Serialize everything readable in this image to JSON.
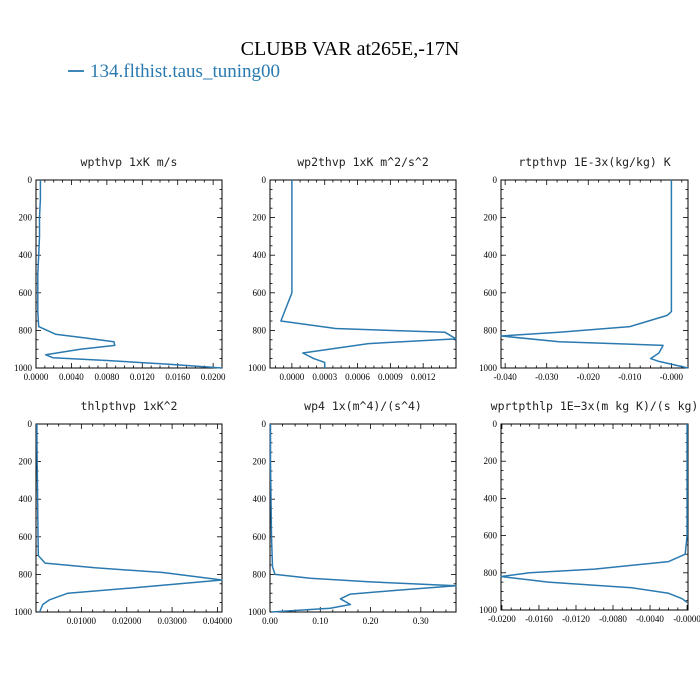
{
  "title": "CLUBB VAR at265E,-17N",
  "legend": {
    "label": "134.flthist.taus_tuning00",
    "color": "#2a7ab0"
  },
  "chart_data": [
    {
      "type": "line",
      "title": "wpthvp  1xK m/s",
      "xlim": [
        0,
        0.021
      ],
      "ylim": [
        0,
        1000
      ],
      "y_inverted": true,
      "xticks": [
        "0.0000",
        "0.0040",
        "0.0080",
        "0.0120",
        "0.0160",
        "0.0200"
      ],
      "xtick_values": [
        0,
        0.004,
        0.008,
        0.012,
        0.016,
        0.02
      ],
      "yticks": [
        "0",
        "200",
        "400",
        "600",
        "800",
        "1000"
      ],
      "series": [
        {
          "x": [
            0.0005,
            0.0005,
            0.0004,
            0.0004,
            0.0003,
            0.0002,
            0.0002,
            0.0002,
            0.0003,
            0.0022,
            0.0055,
            0.0088,
            0.0089,
            0.005,
            0.0011,
            0.0019,
            0.008,
            0.015,
            0.021
          ],
          "y": [
            0,
            100,
            200,
            300,
            400,
            500,
            600,
            700,
            780,
            820,
            840,
            860,
            880,
            900,
            930,
            945,
            960,
            980,
            1000
          ]
        }
      ]
    },
    {
      "type": "line",
      "title": "wp2thvp  1xK m^2/s^2",
      "xlim": [
        -0.0002,
        0.0015
      ],
      "ylim": [
        0,
        1000
      ],
      "y_inverted": true,
      "xticks": [
        "0.0000",
        "0.0003",
        "0.0006",
        "0.0009",
        "0.0012"
      ],
      "xtick_values": [
        0,
        0.0003,
        0.0006,
        0.0009,
        0.0012
      ],
      "yticks": [
        "0",
        "200",
        "400",
        "600",
        "800",
        "1000"
      ],
      "series": [
        {
          "x": [
            0.0,
            0.0,
            0.0,
            0.0,
            0.0,
            0.0,
            0.0,
            -0.0001,
            0.0004,
            0.0014,
            0.0015,
            0.0007,
            0.0001,
            0.0002,
            0.0003,
            0.0003
          ],
          "y": [
            0,
            100,
            200,
            300,
            400,
            500,
            600,
            750,
            790,
            810,
            845,
            870,
            920,
            950,
            970,
            1000
          ]
        }
      ]
    },
    {
      "type": "line",
      "title": "rtpthvp  1E-3x(kg/kg) K",
      "xlim": [
        -0.041,
        0.004
      ],
      "ylim": [
        0,
        1000
      ],
      "y_inverted": true,
      "xticks": [
        "-0.040",
        "-0.030",
        "-0.020",
        "-0.010",
        "-0.000"
      ],
      "xtick_values": [
        -0.04,
        -0.03,
        -0.02,
        -0.01,
        0
      ],
      "yticks": [
        "0",
        "200",
        "400",
        "600",
        "800",
        "1000"
      ],
      "series": [
        {
          "x": [
            0.0,
            0.0,
            0.0,
            0.0,
            0.0,
            -0.001,
            -0.01,
            -0.027,
            -0.041,
            -0.027,
            -0.002,
            -0.003,
            -0.005,
            -0.003,
            0.004
          ],
          "y": [
            0,
            100,
            300,
            500,
            700,
            720,
            780,
            810,
            830,
            860,
            880,
            920,
            950,
            965,
            1000
          ]
        }
      ]
    },
    {
      "type": "line",
      "title": "thlpthvp  1xK^2",
      "xlim": [
        0,
        0.041
      ],
      "ylim": [
        0,
        1000
      ],
      "y_inverted": true,
      "xticks": [
        "0.01000",
        "0.02000",
        "0.03000",
        "0.04000"
      ],
      "xtick_values": [
        0.01,
        0.02,
        0.03,
        0.04
      ],
      "yticks": [
        "0",
        "200",
        "400",
        "600",
        "800",
        "1000"
      ],
      "series": [
        {
          "x": [
            0.0002,
            0.0002,
            0.0003,
            0.0004,
            0.0005,
            0.002,
            0.013,
            0.028,
            0.041,
            0.022,
            0.007,
            0.003,
            0.0015,
            0.0008
          ],
          "y": [
            0,
            100,
            300,
            500,
            700,
            740,
            765,
            790,
            830,
            870,
            900,
            935,
            960,
            1000
          ]
        }
      ]
    },
    {
      "type": "line",
      "title": "wp4  1x(m^4)/(s^4)",
      "xlim": [
        0,
        0.37
      ],
      "ylim": [
        0,
        1000
      ],
      "y_inverted": true,
      "xticks": [
        "0.00",
        "0.10",
        "0.20",
        "0.30"
      ],
      "xtick_values": [
        0,
        0.1,
        0.2,
        0.3
      ],
      "yticks": [
        "0",
        "200",
        "400",
        "600",
        "800",
        "1000"
      ],
      "series": [
        {
          "x": [
            0.001,
            0.001,
            0.002,
            0.003,
            0.005,
            0.01,
            0.08,
            0.2,
            0.37,
            0.25,
            0.16,
            0.14,
            0.16,
            0.12,
            0.03,
            0.003
          ],
          "y": [
            0,
            200,
            400,
            600,
            760,
            800,
            820,
            840,
            860,
            885,
            905,
            930,
            960,
            980,
            995,
            1000
          ]
        }
      ]
    },
    {
      "type": "line",
      "title": "wprtpthlp  1E−3x(m kg K)/(s kg)",
      "xlim": [
        -0.0201,
        0.0001
      ],
      "ylim": [
        0,
        1000
      ],
      "y_inverted": true,
      "xticks": [
        "-0.0200",
        "-0.0160",
        "-0.0120",
        "-0.0080",
        "-0.0040",
        "-0.0000"
      ],
      "xtick_values": [
        -0.02,
        -0.016,
        -0.012,
        -0.008,
        -0.004,
        0
      ],
      "yticks": [
        "0",
        "200",
        "400",
        "600",
        "800",
        "1000"
      ],
      "series": [
        {
          "x": [
            0.0,
            0.0,
            0.0,
            0.0,
            -0.0002,
            -0.002,
            -0.01,
            -0.017,
            -0.0201,
            -0.015,
            -0.006,
            -0.002,
            -0.0005,
            0.0
          ],
          "y": [
            0,
            200,
            400,
            600,
            700,
            740,
            780,
            800,
            820,
            850,
            880,
            910,
            940,
            960
          ]
        }
      ]
    }
  ]
}
